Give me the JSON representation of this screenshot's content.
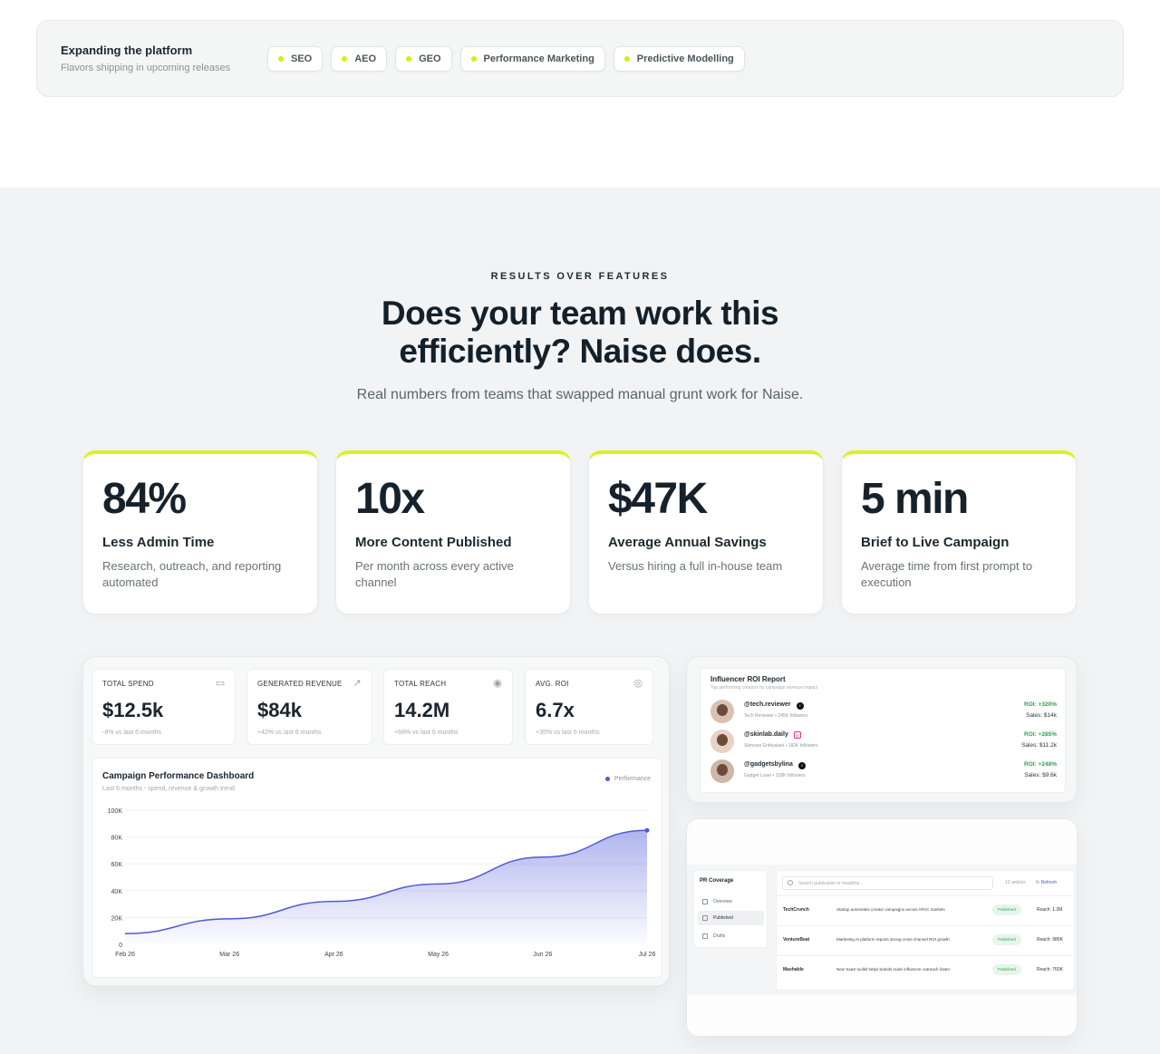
{
  "platform": {
    "title": "Expanding the platform",
    "subtitle": "Flavors shipping in upcoming releases",
    "chips": [
      "SEO",
      "AEO",
      "GEO",
      "Performance Marketing",
      "Predictive Modelling"
    ]
  },
  "results": {
    "eyebrow": "RESULTS OVER FEATURES",
    "headline_line1": "Does your team work this",
    "headline_line2": "efficiently? Naise does.",
    "subhead": "Real numbers from teams that swapped manual grunt work for Naise.",
    "stats": [
      {
        "value": "84%",
        "label": "Less Admin Time",
        "desc": "Research, outreach, and reporting automated"
      },
      {
        "value": "10x",
        "label": "More Content Published",
        "desc": "Per month across every active channel"
      },
      {
        "value": "$47K",
        "label": "Average Annual Savings",
        "desc": "Versus hiring a full in-house team"
      },
      {
        "value": "5 min",
        "label": "Brief to Live Campaign",
        "desc": "Average time from first prompt to execution"
      }
    ]
  },
  "dashboard": {
    "kpis": [
      {
        "label": "TOTAL SPEND",
        "value": "$12.5k",
        "delta": "-8% vs last 6 months",
        "icon": "wallet-icon"
      },
      {
        "label": "GENERATED REVENUE",
        "value": "$84k",
        "delta": "+42% vs last 6 months",
        "icon": "trend-up-icon"
      },
      {
        "label": "TOTAL REACH",
        "value": "14.2M",
        "delta": "+68% vs last 6 months",
        "icon": "eye-icon"
      },
      {
        "label": "AVG. ROI",
        "value": "6.7x",
        "delta": "+35% vs last 6 months",
        "icon": "target-icon"
      }
    ],
    "chart_title": "Campaign Performance Dashboard",
    "chart_subtitle": "Last 6 months - spend, revenue & growth trend",
    "legend": "Performance"
  },
  "chart_data": {
    "type": "area",
    "title": "Campaign Performance Dashboard",
    "subtitle": "Last 6 months - spend, revenue & growth trend",
    "x": [
      "Feb 26",
      "Mar 26",
      "Apr 26",
      "May 26",
      "Jun 26",
      "Jul 26"
    ],
    "y_ticks": [
      "0",
      "20K",
      "40K",
      "60K",
      "80K",
      "100K"
    ],
    "ylim": [
      0,
      100000
    ],
    "series": [
      {
        "name": "Performance",
        "values": [
          8000,
          19000,
          32000,
          45000,
          65000,
          85000
        ],
        "color": "#4f5bd5"
      }
    ],
    "grid": true,
    "legend": "top-right"
  },
  "influencer": {
    "title": "Influencer ROI Report",
    "subtitle": "Top performing creators by campaign revenue impact",
    "rows": [
      {
        "handle": "@tech.reviewer",
        "platform": "tiktok-icon",
        "meta": "Tech Reviewer • 245K followers",
        "roi": "ROI: +320%",
        "sales": "Sales: $14k"
      },
      {
        "handle": "@skinlab.daily",
        "platform": "instagram-icon",
        "meta": "Skincare Enthusiast • 182K followers",
        "roi": "ROI: +285%",
        "sales": "Sales: $11.2k"
      },
      {
        "handle": "@gadgetsbylina",
        "platform": "tiktok-icon",
        "meta": "Gadget Lover • 318K followers",
        "roi": "ROI: +248%",
        "sales": "Sales: $9.6k"
      }
    ]
  },
  "pr": {
    "title": "PR Coverage",
    "nav": [
      "Overview",
      "Published",
      "Drafts"
    ],
    "search_placeholder": "Search publication or headline...",
    "count": "12 articles",
    "refresh": "Refresh",
    "rows": [
      {
        "outlet": "TechCrunch",
        "headline": "Startup automates creator campaigns across APAC markets",
        "status": "Published",
        "reach": "Reach: 1.2M"
      },
      {
        "outlet": "VentureBeat",
        "headline": "Marketing AI platform reports strong cross-channel ROI growth",
        "status": "Published",
        "reach": "Reach: 980K"
      },
      {
        "outlet": "Mashable",
        "headline": "New SaaS toolkit helps brands scale influencer outreach faster",
        "status": "Published",
        "reach": "Reach: 760K"
      }
    ]
  }
}
